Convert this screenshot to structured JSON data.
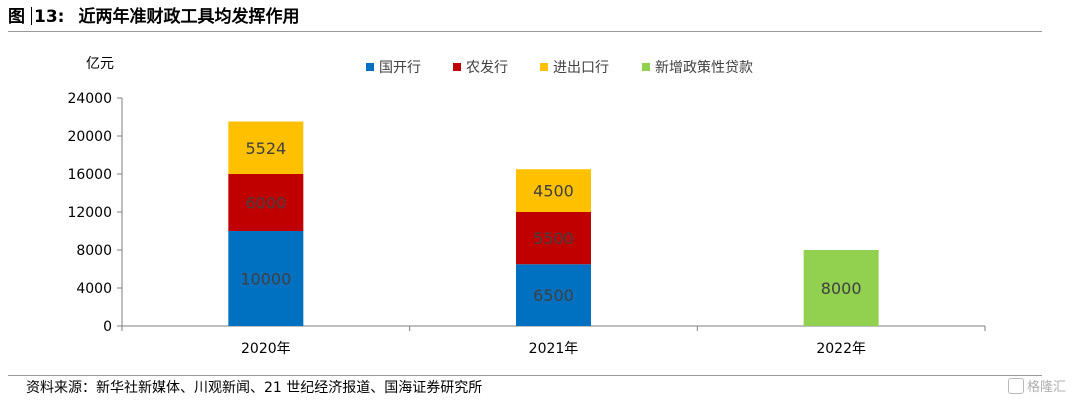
{
  "figure": {
    "number": "13:",
    "prefix": "图",
    "title": "近两年准财政工具均发挥作用"
  },
  "source": "资料来源：新华社新媒体、川观新闻、21 世纪经济报道、国海证券研究所",
  "watermark": "格隆汇",
  "chart_data": {
    "type": "bar",
    "stacked": true,
    "title": "",
    "xlabel": "",
    "ylabel": "亿元",
    "ylim": [
      0,
      24000
    ],
    "yticks": [
      0,
      4000,
      8000,
      12000,
      16000,
      20000,
      24000
    ],
    "categories": [
      "2020年",
      "2021年",
      "2022年"
    ],
    "legend_position": "top-center",
    "series": [
      {
        "name": "国开行",
        "color": "#0070C0",
        "values": [
          10000,
          6500,
          null
        ]
      },
      {
        "name": "农发行",
        "color": "#C00000",
        "values": [
          6000,
          5500,
          null
        ]
      },
      {
        "name": "进出口行",
        "color": "#FFC000",
        "values": [
          5524,
          4500,
          null
        ]
      },
      {
        "name": "新增政策性贷款",
        "color": "#92D050",
        "values": [
          null,
          null,
          8000
        ]
      }
    ]
  }
}
